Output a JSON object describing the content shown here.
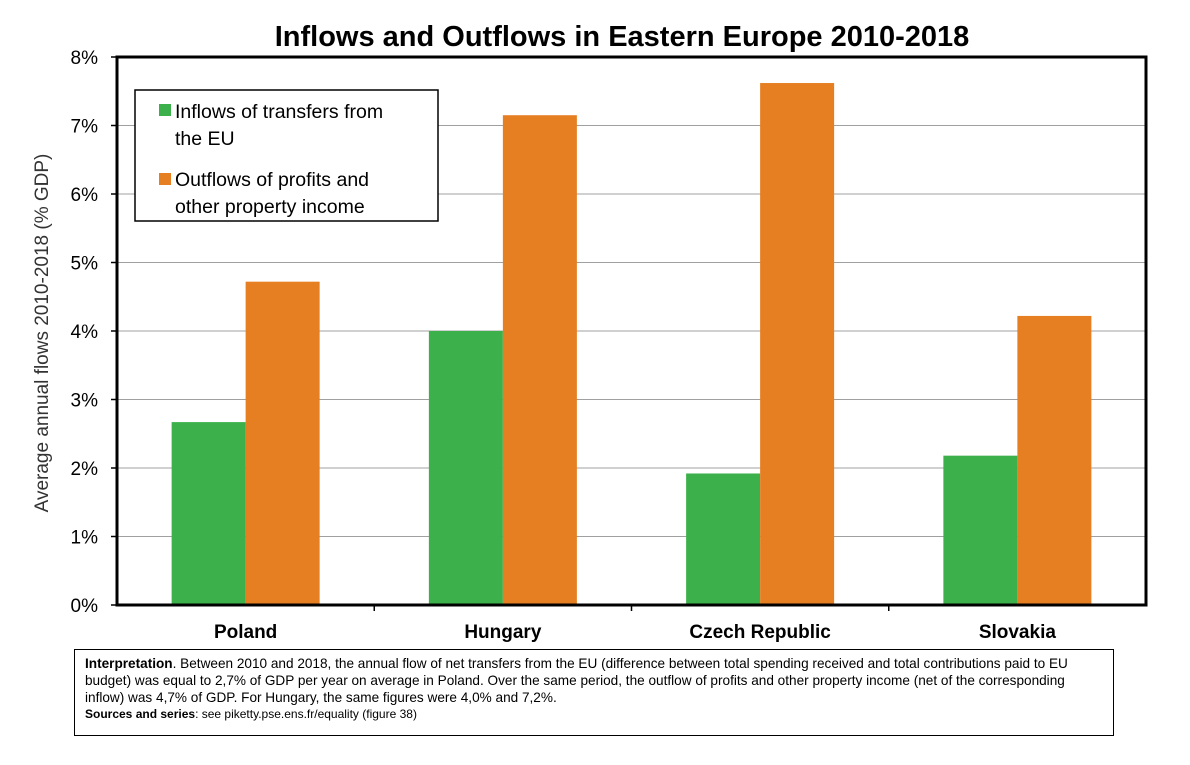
{
  "chart_data": {
    "type": "bar",
    "title": "Inflows and Outflows in Eastern Europe 2010-2018",
    "ylabel": "Average annual flows 2010-2018 (% GDP)",
    "xlabel": "",
    "categories": [
      "Poland",
      "Hungary",
      "Czech Republic",
      "Slovakia"
    ],
    "ylim": [
      0,
      8
    ],
    "yticks": [
      "0%",
      "1%",
      "2%",
      "3%",
      "4%",
      "5%",
      "6%",
      "7%",
      "8%"
    ],
    "grid": true,
    "legend_position": "top-left",
    "series": [
      {
        "name": "Inflows of transfers from the EU",
        "legend_lines": [
          "Inflows of transfers from",
          "the EU"
        ],
        "color": "#3cb04a",
        "values": [
          2.67,
          4.0,
          1.92,
          2.18
        ]
      },
      {
        "name": "Outflows of profits and other property income",
        "legend_lines": [
          "Outflows of profits and",
          "other property income"
        ],
        "color": "#e67e22",
        "values": [
          4.72,
          7.15,
          7.62,
          4.22
        ]
      }
    ]
  },
  "note": {
    "interp_label": "Interpretation",
    "interp_text": ". Between 2010 and 2018, the annual flow of net transfers from the EU (difference between total spending received and total contributions paid to EU budget) was equal to 2,7% of GDP per year on average in Poland. Over the same period, the outflow of profits and other property income (net of the corresponding inflow) was 4,7% of GDP. For Hungary, the same figures were 4,0% and 7,2%.",
    "sources_label": "Sources and series",
    "sources_text": ": see piketty.pse.ens.fr/equality (figure 38)"
  }
}
